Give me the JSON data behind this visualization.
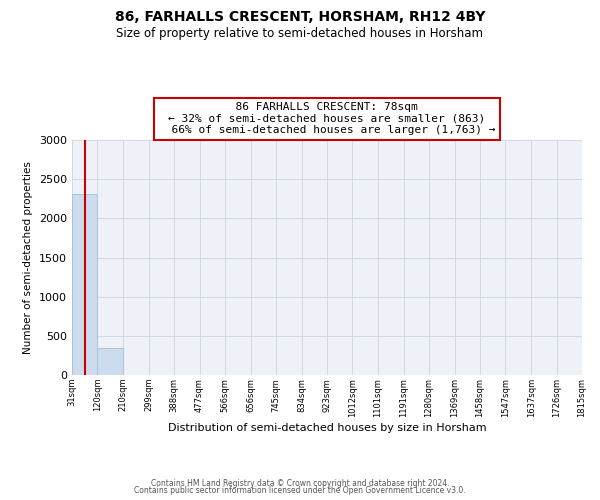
{
  "title": "86, FARHALLS CRESCENT, HORSHAM, RH12 4BY",
  "subtitle": "Size of property relative to semi-detached houses in Horsham",
  "xlabel": "Distribution of semi-detached houses by size in Horsham",
  "ylabel": "Number of semi-detached properties",
  "property_size": 78,
  "pct_smaller": 32,
  "count_smaller": 863,
  "pct_larger": 66,
  "count_larger": 1763,
  "bin_edges": [
    31,
    120,
    210,
    299,
    388,
    477,
    566,
    656,
    745,
    834,
    923,
    1012,
    1101,
    1191,
    1280,
    1369,
    1458,
    1547,
    1637,
    1726,
    1815
  ],
  "bin_labels": [
    "31sqm",
    "120sqm",
    "210sqm",
    "299sqm",
    "388sqm",
    "477sqm",
    "566sqm",
    "656sqm",
    "745sqm",
    "834sqm",
    "923sqm",
    "1012sqm",
    "1101sqm",
    "1191sqm",
    "1280sqm",
    "1369sqm",
    "1458sqm",
    "1547sqm",
    "1637sqm",
    "1726sqm",
    "1815sqm"
  ],
  "bar_heights": [
    2310,
    340,
    0,
    0,
    0,
    0,
    0,
    0,
    0,
    0,
    0,
    0,
    0,
    0,
    0,
    0,
    0,
    0,
    0,
    0
  ],
  "bar_color": "#ccdcee",
  "bar_edgecolor": "#a8c4d8",
  "property_line_color": "#cc0000",
  "annotation_box_edgecolor": "#cc0000",
  "grid_color": "#d0d8e8",
  "ylim": [
    0,
    3000
  ],
  "yticks": [
    0,
    500,
    1000,
    1500,
    2000,
    2500,
    3000
  ],
  "footer_line1": "Contains HM Land Registry data © Crown copyright and database right 2024.",
  "footer_line2": "Contains public sector information licensed under the Open Government Licence v3.0.",
  "background_color": "#ffffff",
  "plot_bg_color": "#eef2f8"
}
